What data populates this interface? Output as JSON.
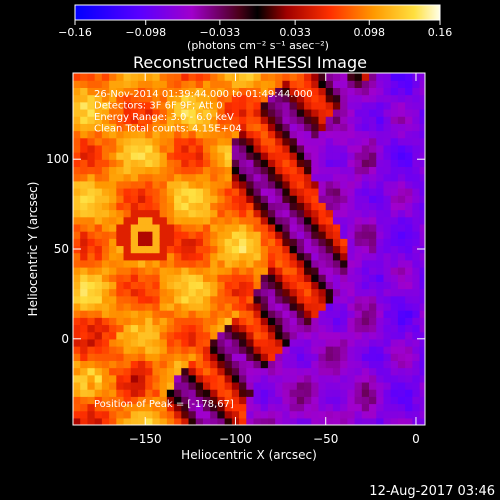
{
  "timestamp": "12-Aug-2017 03:46",
  "chart_data": {
    "type": "heatmap",
    "title": "Reconstructed RHESSI Image",
    "xlabel": "Heliocentric X (arcsec)",
    "ylabel": "Heliocentric Y (arcsec)",
    "xlim": [
      -190,
      5
    ],
    "ylim": [
      -48,
      148
    ],
    "x_ticks": [
      -150,
      -100,
      -50,
      0
    ],
    "y_ticks": [
      0,
      50,
      100
    ],
    "colorbar": {
      "label": "(photons cm⁻² s⁻¹ asec⁻²)",
      "range": [
        -0.16,
        0.16
      ],
      "ticks": [
        -0.16,
        -0.098,
        -0.033,
        0.033,
        0.098,
        0.16
      ]
    },
    "annotations": [
      "26-Nov-2014 01:39:44.000 to 01:49:44.000",
      "Detectors: 3F 6F 9F; Att 0",
      "Energy Range: 3.0 - 6.0 keV",
      "Clean     Total counts: 4.15E+04"
    ],
    "peak_label": "Position of Peak = [-178,67]",
    "peak": [
      -178,
      67
    ],
    "grid": false
  }
}
